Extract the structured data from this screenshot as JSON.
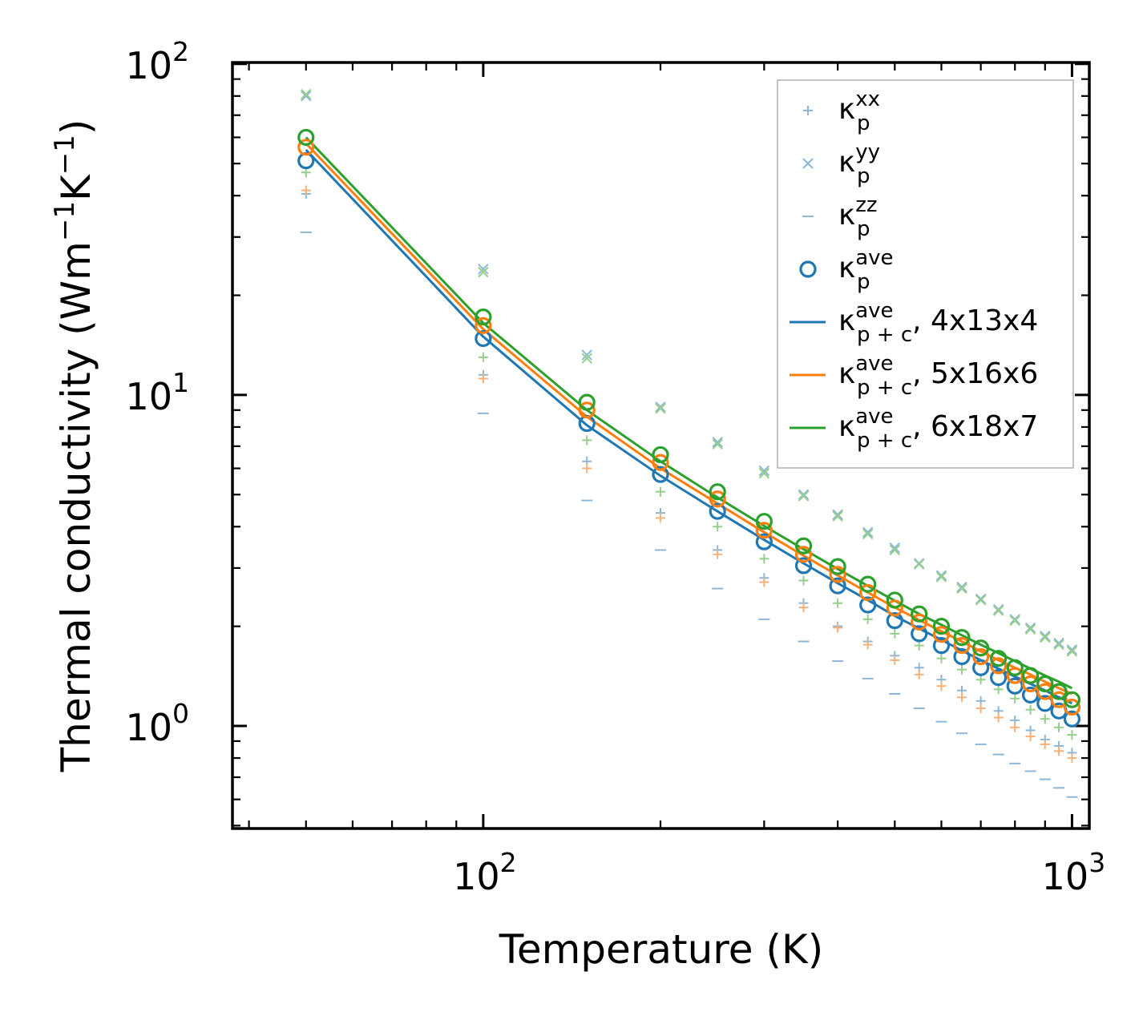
{
  "chart_data": {
    "type": "line",
    "xscale": "log",
    "yscale": "log",
    "xlim": [
      37.5,
      1070
    ],
    "ylim": [
      0.49,
      101
    ],
    "x": [
      50,
      100,
      150,
      200,
      250,
      300,
      350,
      400,
      450,
      500,
      550,
      600,
      650,
      700,
      750,
      800,
      850,
      900,
      950,
      1000
    ],
    "xlabel": "Temperature (K)",
    "ylabel": {
      "main": "Thermal conductivity (Wm",
      "exp1": "−1",
      "mid": "K",
      "exp2": "−1",
      "end": ")"
    },
    "x_tick_labels": [
      {
        "value": 100,
        "base": "10",
        "exp": "2"
      },
      {
        "value": 1000,
        "base": "10",
        "exp": "3"
      }
    ],
    "y_tick_labels": [
      {
        "value": 1,
        "base": "10",
        "exp": "0"
      },
      {
        "value": 10,
        "base": "10",
        "exp": "1"
      },
      {
        "value": 100,
        "base": "10",
        "exp": "2"
      }
    ],
    "colors": {
      "blue": "#1f77b4",
      "orange": "#ff7f0e",
      "green": "#2ca02c",
      "light_blue": "#8db7d9",
      "light_orange": "#f7b27a",
      "light_green": "#96cf8b"
    },
    "series": [
      {
        "name": "kappa_p_xx 4x13x4",
        "marker": "+",
        "color": "#8db7d9",
        "values": [
          40.5,
          11.5,
          6.3,
          4.4,
          3.4,
          2.8,
          2.35,
          2.0,
          1.8,
          1.63,
          1.5,
          1.38,
          1.28,
          1.19,
          1.11,
          1.04,
          0.97,
          0.91,
          0.87,
          0.83
        ]
      },
      {
        "name": "kappa_p_xx 5x16x6",
        "marker": "+",
        "color": "#f7b27a",
        "values": [
          41.5,
          11.2,
          6.0,
          4.25,
          3.3,
          2.72,
          2.28,
          1.98,
          1.76,
          1.58,
          1.43,
          1.32,
          1.22,
          1.13,
          1.06,
          0.99,
          0.93,
          0.88,
          0.84,
          0.8
        ]
      },
      {
        "name": "kappa_p_xx 6x18x7",
        "marker": "+",
        "color": "#96cf8b",
        "values": [
          47,
          13.0,
          7.3,
          5.1,
          4.0,
          3.2,
          2.75,
          2.35,
          2.1,
          1.9,
          1.75,
          1.6,
          1.48,
          1.38,
          1.29,
          1.21,
          1.12,
          1.05,
          0.99,
          0.94
        ]
      },
      {
        "name": "kappa_p_yy 4x13x4",
        "marker": "x",
        "color": "#8db7d9",
        "values": [
          80,
          24,
          13.2,
          9.2,
          7.2,
          5.9,
          5.0,
          4.35,
          3.85,
          3.45,
          3.1,
          2.85,
          2.63,
          2.42,
          2.25,
          2.1,
          1.98,
          1.87,
          1.78,
          1.7
        ]
      },
      {
        "name": "kappa_p_yy 6x18x7",
        "marker": "x",
        "color": "#96cf8b",
        "values": [
          81,
          23.5,
          12.9,
          9.1,
          7.1,
          5.8,
          4.95,
          4.3,
          3.8,
          3.4,
          3.08,
          2.82,
          2.6,
          2.4,
          2.23,
          2.08,
          1.96,
          1.85,
          1.76,
          1.68
        ]
      },
      {
        "name": "kappa_p_zz 4x13x4",
        "marker": "_",
        "color": "#8db7d9",
        "values": [
          31,
          8.8,
          4.8,
          3.4,
          2.6,
          2.1,
          1.8,
          1.57,
          1.39,
          1.25,
          1.13,
          1.03,
          0.95,
          0.88,
          0.82,
          0.77,
          0.73,
          0.69,
          0.65,
          0.61
        ]
      },
      {
        "name": "kappa_p_ave 4x13x4",
        "marker": "o",
        "color": "#1f77b4",
        "values": [
          51,
          14.8,
          8.2,
          5.75,
          4.45,
          3.6,
          3.05,
          2.65,
          2.32,
          2.08,
          1.9,
          1.75,
          1.62,
          1.5,
          1.4,
          1.32,
          1.24,
          1.17,
          1.11,
          1.05
        ]
      },
      {
        "name": "kappa_p_ave 5x16x6",
        "marker": "o",
        "color": "#ff7f0e",
        "values": [
          56,
          16.2,
          9.0,
          6.25,
          4.85,
          3.9,
          3.3,
          2.87,
          2.53,
          2.27,
          2.06,
          1.89,
          1.75,
          1.62,
          1.52,
          1.42,
          1.34,
          1.27,
          1.2,
          1.14
        ]
      },
      {
        "name": "kappa_p_ave 6x18x7",
        "marker": "o",
        "color": "#2ca02c",
        "values": [
          60,
          17.2,
          9.5,
          6.6,
          5.1,
          4.15,
          3.5,
          3.03,
          2.68,
          2.4,
          2.18,
          2.0,
          1.85,
          1.72,
          1.6,
          1.5,
          1.42,
          1.34,
          1.27,
          1.2
        ]
      },
      {
        "name": "kappa_p+c_ave 4x13x4",
        "marker": "line",
        "color": "#1f77b4",
        "values": [
          55,
          15.0,
          8.1,
          5.7,
          4.45,
          3.65,
          3.1,
          2.7,
          2.4,
          2.15,
          1.97,
          1.82,
          1.69,
          1.58,
          1.49,
          1.41,
          1.34,
          1.28,
          1.22,
          1.17
        ]
      },
      {
        "name": "kappa_p+c_ave 5x16x6",
        "marker": "line",
        "color": "#ff7f0e",
        "values": [
          57.5,
          15.8,
          8.6,
          6.0,
          4.7,
          3.85,
          3.27,
          2.85,
          2.53,
          2.28,
          2.09,
          1.93,
          1.8,
          1.68,
          1.58,
          1.5,
          1.43,
          1.36,
          1.3,
          1.25
        ]
      },
      {
        "name": "kappa_p+c_ave 6x18x7",
        "marker": "line",
        "color": "#2ca02c",
        "values": [
          60,
          16.5,
          9.0,
          6.3,
          4.9,
          4.02,
          3.42,
          2.98,
          2.65,
          2.39,
          2.18,
          2.02,
          1.88,
          1.76,
          1.66,
          1.57,
          1.49,
          1.42,
          1.36,
          1.3
        ]
      }
    ],
    "legend": {
      "position": "top-right",
      "entries": [
        {
          "marker": "+",
          "color": "#8db7d9",
          "sym": "κ",
          "sub": "p",
          "sup": "xx",
          "suffix": ""
        },
        {
          "marker": "x",
          "color": "#8db7d9",
          "sym": "κ",
          "sub": "p",
          "sup": "yy",
          "suffix": ""
        },
        {
          "marker": "_",
          "color": "#8db7d9",
          "sym": "κ",
          "sub": "p",
          "sup": "zz",
          "suffix": ""
        },
        {
          "marker": "o",
          "color": "#1f77b4",
          "sym": "κ",
          "sub": "p",
          "sup": "ave",
          "suffix": ""
        },
        {
          "marker": "line",
          "color": "#1f77b4",
          "sym": "κ",
          "sub": "p + c",
          "sup": "ave",
          "suffix": ", 4x13x4"
        },
        {
          "marker": "line",
          "color": "#ff7f0e",
          "sym": "κ",
          "sub": "p + c",
          "sup": "ave",
          "suffix": ", 5x16x6"
        },
        {
          "marker": "line",
          "color": "#2ca02c",
          "sym": "κ",
          "sub": "p + c",
          "sup": "ave",
          "suffix": ", 6x18x7"
        }
      ]
    }
  }
}
